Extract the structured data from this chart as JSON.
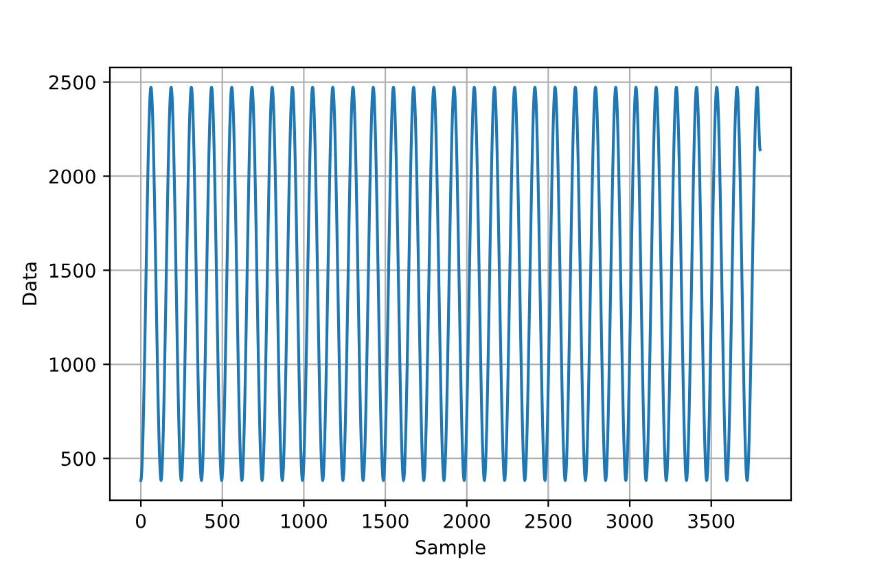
{
  "chart_data": {
    "type": "line",
    "xlabel": "Sample",
    "ylabel": "Data",
    "x": [
      0,
      62,
      124,
      186,
      248,
      310,
      372,
      434,
      496,
      558,
      620,
      682,
      744,
      806,
      868,
      930,
      992,
      1054,
      1116,
      1178,
      1240,
      1302,
      1364,
      1426,
      1488,
      1550,
      1612,
      1674,
      1736,
      1798,
      1860,
      1922,
      1984,
      2046,
      2108,
      2170,
      2232,
      2294,
      2356,
      2418,
      2480,
      2542,
      2604,
      2666,
      2728,
      2790,
      2852,
      2914,
      2976,
      3038,
      3100,
      3162,
      3224,
      3286,
      3348,
      3410,
      3472,
      3534,
      3596,
      3658,
      3720,
      3782,
      3800
    ],
    "series": [
      {
        "color": "#1f77b4",
        "values": [
          383,
          2473,
          383,
          2473,
          383,
          2473,
          383,
          2473,
          383,
          2473,
          383,
          2473,
          383,
          2473,
          383,
          2473,
          383,
          2473,
          383,
          2473,
          383,
          2473,
          383,
          2473,
          383,
          2473,
          383,
          2473,
          383,
          2473,
          383,
          2473,
          383,
          2473,
          383,
          2473,
          383,
          2473,
          383,
          2473,
          383,
          2473,
          383,
          2473,
          383,
          2473,
          383,
          2473,
          383,
          2473,
          383,
          2473,
          383,
          2473,
          383,
          2473,
          383,
          2473,
          383,
          2473,
          383,
          2473,
          2140
        ]
      }
    ],
    "xlim": [
      -190,
      3990
    ],
    "ylim": [
      278,
      2578
    ],
    "xticks": [
      0,
      500,
      1000,
      1500,
      2000,
      2500,
      3000,
      3500
    ],
    "yticks": [
      500,
      1000,
      1500,
      2000,
      2500
    ],
    "grid": true,
    "marker": "none",
    "line_style": "solid"
  }
}
